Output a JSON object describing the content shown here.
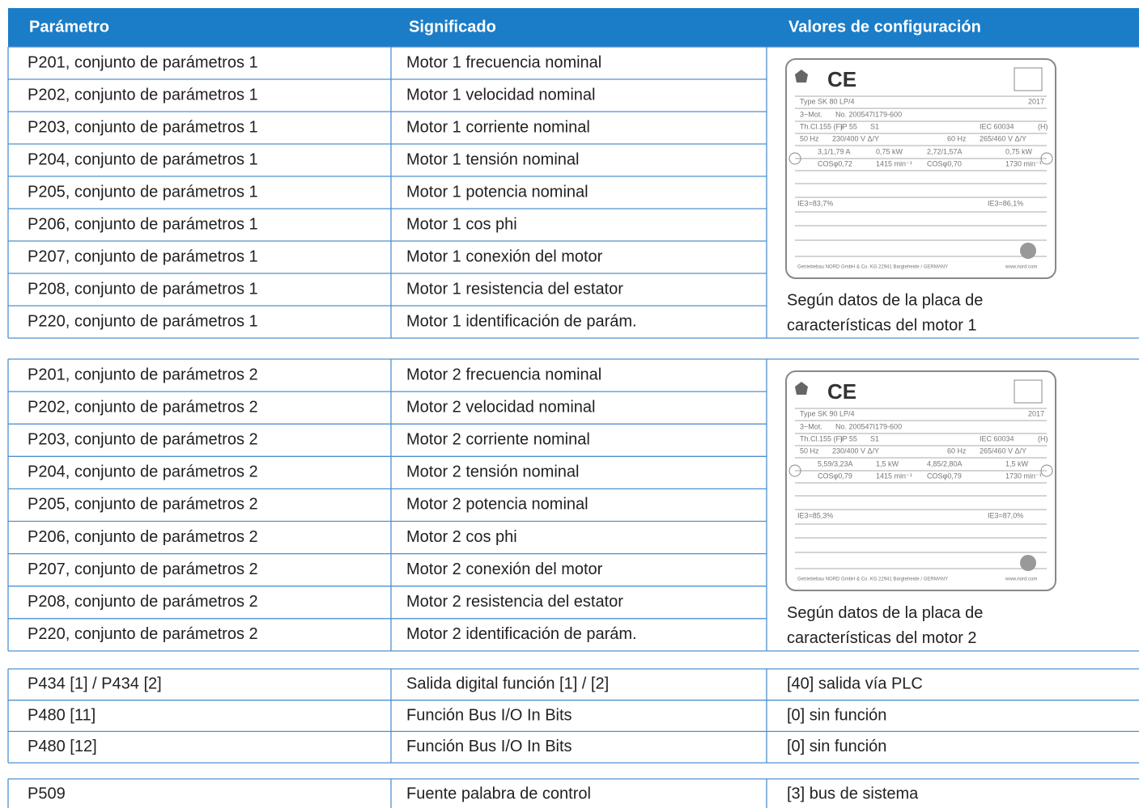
{
  "header": {
    "columns": [
      "Parámetro",
      "Significado",
      "Valores de configuración"
    ]
  },
  "groups": [
    {
      "rows": [
        [
          "P201, conjunto de parámetros 1",
          "Motor 1 frecuencia nominal"
        ],
        [
          "P202, conjunto de parámetros 1",
          "Motor 1 velocidad nominal"
        ],
        [
          "P203, conjunto de parámetros 1",
          "Motor 1 corriente nominal"
        ],
        [
          "P204, conjunto de parámetros 1",
          "Motor 1 tensión nominal"
        ],
        [
          "P205, conjunto de parámetros 1",
          "Motor 1 potencia nominal"
        ],
        [
          "P206, conjunto de parámetros 1",
          "Motor 1 cos phi"
        ],
        [
          "P207, conjunto de parámetros 1",
          "Motor 1 conexión del motor"
        ],
        [
          "P208, conjunto de parámetros 1",
          "Motor 1 resistencia del estator"
        ],
        [
          "P220, conjunto de parámetros 1",
          "Motor 1 identificación de parám."
        ]
      ],
      "note": [
        "Según datos de la placa de",
        "características del motor 1"
      ],
      "plate": [
        "CE",
        "Type SK 80 LP/4",
        "2017",
        "3~Mot.",
        "No. 200547I179-600",
        "Th.Cl.155 (F)",
        "IP 55",
        "S1",
        "IEC 60034",
        "(H)",
        "50 Hz",
        "230/400 V Δ/Y",
        "60 Hz",
        "265/460 V Δ/Y",
        "3,1/1,79 A",
        "0,75 kW",
        "2,72/1,57A",
        "0,75 kW",
        "COSφ0,72",
        "1415 min⁻¹",
        "COSφ0,70",
        "1730 min⁻¹",
        "IE3=83,7%",
        "IE3=86,1%",
        "Getriebebau NORD GmbH & Co. KG 22941 Bargteheide / GERMANY",
        "www.nord.com"
      ]
    },
    {
      "rows": [
        [
          "P201, conjunto de parámetros 2",
          "Motor 2 frecuencia nominal"
        ],
        [
          "P202, conjunto de parámetros 2",
          "Motor 2 velocidad nominal"
        ],
        [
          "P203, conjunto de parámetros 2",
          "Motor 2 corriente nominal"
        ],
        [
          "P204, conjunto de parámetros 2",
          "Motor 2 tensión nominal"
        ],
        [
          "P205, conjunto de parámetros 2",
          "Motor 2 potencia nominal"
        ],
        [
          "P206, conjunto de parámetros 2",
          "Motor 2 cos phi"
        ],
        [
          "P207, conjunto de parámetros 2",
          "Motor 2 conexión del motor"
        ],
        [
          "P208, conjunto de parámetros 2",
          "Motor 2 resistencia del estator"
        ],
        [
          "P220, conjunto de parámetros 2",
          "Motor 2 identificación de parám."
        ]
      ],
      "note": [
        "Según datos de la placa de",
        "características del motor 2"
      ],
      "plate": [
        "CE",
        "Type SK 90 LP/4",
        "2017",
        "3~Mot.",
        "No. 200547I179-600",
        "Th.Cl.155 (F)",
        "IP 55",
        "S1",
        "IEC 60034",
        "(H)",
        "50 Hz",
        "230/400 V Δ/Y",
        "60 Hz",
        "265/460 V Δ/Y",
        "5,59/3,23A",
        "1,5 kW",
        "4,85/2,80A",
        "1,5 kW",
        "COSφ0,79",
        "1415 min⁻¹",
        "COSφ0,79",
        "1730 min⁻¹",
        "IE3=85,3%",
        "IE3=87,0%",
        "Getriebebau NORD GmbH & Co. KG 22941 Bargteheide / GERMANY",
        "www.nord.com"
      ]
    }
  ],
  "simple_groups": [
    {
      "rows": [
        [
          "P434 [1] / P434 [2]",
          "Salida digital función [1] / [2]",
          "[40] salida vía PLC"
        ],
        [
          "P480 [11]",
          "Función Bus I/O In Bits",
          "[0] sin función"
        ],
        [
          "P480 [12]",
          "Función Bus I/O In Bits",
          "[0] sin función"
        ]
      ]
    },
    {
      "rows": [
        [
          "P509",
          "Fuente palabra de control",
          "[3] bus de sistema"
        ]
      ]
    }
  ]
}
